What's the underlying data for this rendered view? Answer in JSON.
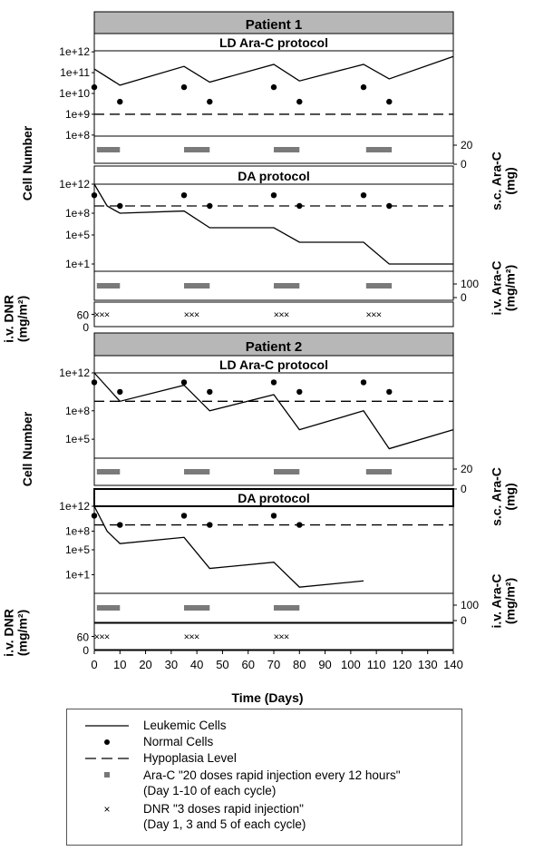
{
  "panel_titles": [
    "Patient 1",
    "Patient 2"
  ],
  "subpanel_titles": {
    "p1_top": "LD Ara-C protocol",
    "p1_bottom": "DA protocol",
    "p2_top": "LD Ara-C protocol",
    "p2_bottom": "DA protocol"
  },
  "axes": {
    "ylabel_left": "Cell Number",
    "ylabel_right_sc": "s.c. Ara-C\n(mg)",
    "ylabel_right_iv": "i.v. Ara-C\n(mg/m²)",
    "ylabel_left_dnr": "i.v. DNR\n(mg/m²)",
    "xlabel": "Time (Days)",
    "x_ticks": [
      "0",
      "10",
      "20",
      "30",
      "40",
      "50",
      "60",
      "70",
      "80",
      "90",
      "100",
      "110",
      "120",
      "130",
      "140"
    ],
    "cell_ticks_p1_top": [
      "1e+12",
      "1e+11",
      "1e+10",
      "1e+9",
      "1e+8"
    ],
    "cell_ticks_p1_bottom": [
      "1e+12",
      "1e+8",
      "1e+5",
      "1e+1"
    ],
    "cell_ticks_p2_top": [
      "1e+12",
      "1e+8",
      "1e+5"
    ],
    "cell_ticks_p2_bottom": [
      "1e+12",
      "1e+8",
      "1e+5",
      "1e+1"
    ],
    "sc_ticks": [
      "20",
      "0"
    ],
    "iv_ticks": [
      "100",
      "0"
    ],
    "dnr_ticks": [
      "60",
      "0"
    ]
  },
  "legend": {
    "leukemic": "Leukemic Cells",
    "normal": "Normal Cells",
    "hypoplasia": "Hypoplasia Level",
    "arac": "Ara-C \"20 doses rapid injection every 12 hours\"\n(Day 1-10 of each cycle)",
    "dnr": "DNR \"3 doses rapid injection\"\n(Day 1, 3 and 5 of each cycle)"
  },
  "chart_data": [
    {
      "type": "line",
      "title": "LD Ara-C protocol",
      "patient": "Patient 1",
      "ylabel": "Cell Number",
      "yscale": "log",
      "ylim": [
        "1e+8",
        "1e+12"
      ],
      "xlim": [
        0,
        140
      ],
      "series": [
        {
          "name": "Leukemic Cells",
          "x": [
            0,
            10,
            35,
            45,
            70,
            80,
            105,
            115,
            140
          ],
          "y": [
            150000000000.0,
            25000000000.0,
            200000000000.0,
            35000000000.0,
            250000000000.0,
            40000000000.0,
            250000000000.0,
            50000000000.0,
            600000000000.0
          ]
        },
        {
          "name": "Normal Cells",
          "x": [
            0,
            10,
            35,
            45,
            70,
            80,
            105,
            115
          ],
          "y": [
            20000000000.0,
            4000000000.0,
            20000000000.0,
            4000000000.0,
            20000000000.0,
            4000000000.0,
            20000000000.0,
            4000000000.0
          ]
        },
        {
          "name": "Hypoplasia Level",
          "x": [
            0,
            140
          ],
          "y": [
            1000000000.0,
            1000000000.0
          ]
        }
      ],
      "arac_dose_mg": 20,
      "arac_cycles_days": [
        [
          1,
          10
        ],
        [
          35,
          45
        ],
        [
          70,
          80
        ],
        [
          106,
          116
        ]
      ]
    },
    {
      "type": "line",
      "title": "DA protocol",
      "patient": "Patient 1",
      "ylabel": "Cell Number",
      "yscale": "log",
      "ylim": [
        "1e+0",
        "1e+12"
      ],
      "xlim": [
        0,
        140
      ],
      "series": [
        {
          "name": "Leukemic Cells",
          "x": [
            0,
            5,
            10,
            35,
            45,
            70,
            80,
            105,
            115,
            140
          ],
          "y": [
            1000000000000.0,
            1000000000.0,
            100000000.0,
            200000000.0,
            1000000.0,
            1000000.0,
            10000.0,
            10000.0,
            10.0,
            10.0
          ]
        },
        {
          "name": "Normal Cells",
          "x": [
            0,
            10,
            35,
            45,
            70,
            80,
            105,
            115
          ],
          "y": [
            30000000000.0,
            1000000000.0,
            30000000000.0,
            1000000000.0,
            30000000000.0,
            1000000000.0,
            30000000000.0,
            1000000000.0
          ]
        },
        {
          "name": "Hypoplasia Level",
          "x": [
            0,
            140
          ],
          "y": [
            1000000000.0,
            1000000000.0
          ]
        }
      ],
      "arac_dose_mg_m2": 100,
      "arac_cycles_days": [
        [
          1,
          10
        ],
        [
          35,
          45
        ],
        [
          70,
          80
        ],
        [
          106,
          116
        ]
      ],
      "dnr_dose_mg_m2": 60,
      "dnr_days": [
        1,
        3,
        5,
        36,
        38,
        40,
        71,
        73,
        75,
        107,
        109,
        111
      ]
    },
    {
      "type": "line",
      "title": "LD Ara-C protocol",
      "patient": "Patient 2",
      "ylabel": "Cell Number",
      "yscale": "log",
      "ylim": [
        "1e+3",
        "1e+12"
      ],
      "xlim": [
        0,
        140
      ],
      "series": [
        {
          "name": "Leukemic Cells",
          "x": [
            0,
            10,
            35,
            45,
            70,
            80,
            105,
            115,
            140
          ],
          "y": [
            1000000000000.0,
            1000000000.0,
            50000000000.0,
            100000000.0,
            5000000000.0,
            1000000.0,
            100000000.0,
            10000.0,
            1000000.0
          ]
        },
        {
          "name": "Normal Cells",
          "x": [
            0,
            10,
            35,
            45,
            70,
            80,
            105,
            115
          ],
          "y": [
            100000000000.0,
            10000000000.0,
            100000000000.0,
            10000000000.0,
            100000000000.0,
            10000000000.0,
            100000000000.0,
            10000000000.0
          ]
        },
        {
          "name": "Hypoplasia Level",
          "x": [
            0,
            140
          ],
          "y": [
            1000000000.0,
            1000000000.0
          ]
        }
      ],
      "arac_dose_mg": 20,
      "arac_cycles_days": [
        [
          1,
          10
        ],
        [
          35,
          45
        ],
        [
          70,
          80
        ],
        [
          106,
          116
        ]
      ]
    },
    {
      "type": "line",
      "title": "DA protocol",
      "patient": "Patient 2",
      "ylabel": "Cell Number",
      "yscale": "log",
      "ylim": [
        "1e-2",
        "1e+12"
      ],
      "xlim": [
        0,
        140
      ],
      "series": [
        {
          "name": "Leukemic Cells",
          "x": [
            0,
            5,
            10,
            35,
            45,
            70,
            80,
            105
          ],
          "y": [
            1000000000000.0,
            100000000.0,
            1000000.0,
            10000000.0,
            100.0,
            1000.0,
            0.1,
            1.0
          ]
        },
        {
          "name": "Normal Cells",
          "x": [
            0,
            10,
            35,
            45,
            70,
            80
          ],
          "y": [
            30000000000.0,
            1000000000.0,
            30000000000.0,
            1000000000.0,
            30000000000.0,
            1000000000.0
          ]
        },
        {
          "name": "Hypoplasia Level",
          "x": [
            0,
            140
          ],
          "y": [
            1000000000.0,
            1000000000.0
          ]
        }
      ],
      "arac_dose_mg_m2": 100,
      "arac_cycles_days": [
        [
          1,
          10
        ],
        [
          35,
          45
        ],
        [
          70,
          80
        ]
      ],
      "dnr_dose_mg_m2": 60,
      "dnr_days": [
        1,
        3,
        5,
        36,
        38,
        40,
        71,
        73,
        75
      ]
    }
  ]
}
